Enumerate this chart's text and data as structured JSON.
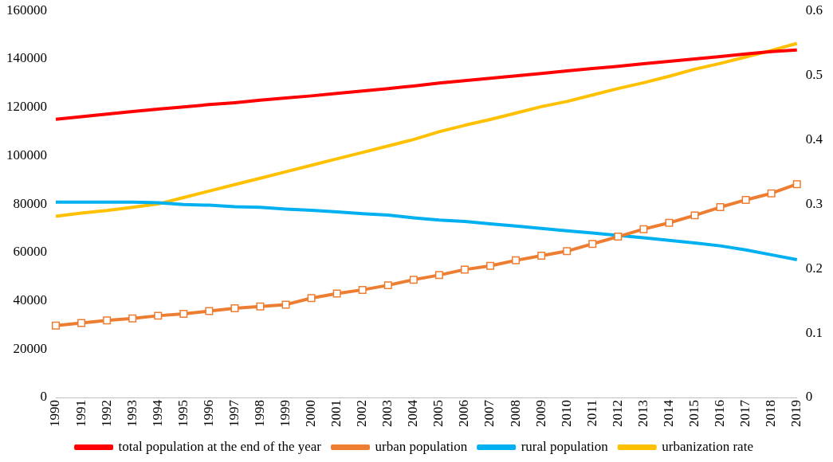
{
  "chart_data": {
    "type": "line",
    "categories": [
      "1990",
      "1991",
      "1992",
      "1993",
      "1994",
      "1995",
      "1996",
      "1997",
      "1998",
      "1999",
      "2000",
      "2001",
      "2002",
      "2003",
      "2004",
      "2005",
      "2006",
      "2007",
      "2008",
      "2009",
      "2010",
      "2011",
      "2012",
      "2013",
      "2014",
      "2015",
      "2016",
      "2017",
      "2018",
      "2019"
    ],
    "series": [
      {
        "name": "total population at the end of the year",
        "color": "#ff0000",
        "marker": "none",
        "values": [
          115000,
          116100,
          117200,
          118200,
          119200,
          120100,
          121100,
          121900,
          122900,
          123800,
          124700,
          125700,
          126700,
          127700,
          128800,
          130000,
          131000,
          132000,
          133000,
          134000,
          135000,
          136000,
          136900,
          138000,
          139000,
          140000,
          141000,
          142000,
          143000,
          143700
        ]
      },
      {
        "name": "urban population",
        "color": "#ed7d31",
        "marker": "square",
        "values": [
          29700,
          30800,
          31900,
          32700,
          33800,
          34600,
          35700,
          36900,
          37600,
          38400,
          41100,
          43000,
          44500,
          46400,
          48700,
          50600,
          52900,
          54400,
          56700,
          58600,
          60500,
          63500,
          66500,
          69600,
          72200,
          75300,
          78700,
          81700,
          84400,
          88200
        ]
      },
      {
        "name": "rural population",
        "color": "#00b0f0",
        "marker": "none",
        "values": [
          80800,
          80800,
          80800,
          80800,
          80500,
          79800,
          79500,
          78900,
          78600,
          77900,
          77400,
          76700,
          76000,
          75400,
          74300,
          73400,
          72800,
          71800,
          70900,
          69900,
          68900,
          68000,
          67000,
          66000,
          65000,
          63900,
          62700,
          61000,
          59000,
          57000
        ]
      },
      {
        "name": "urbanization rate",
        "color": "#ffc000",
        "marker": "none",
        "axis": "y2",
        "values": [
          0.281,
          0.286,
          0.29,
          0.295,
          0.3,
          0.31,
          0.32,
          0.33,
          0.34,
          0.35,
          0.36,
          0.37,
          0.38,
          0.39,
          0.4,
          0.412,
          0.422,
          0.431,
          0.441,
          0.451,
          0.459,
          0.469,
          0.479,
          0.488,
          0.498,
          0.509,
          0.518,
          0.528,
          0.538,
          0.549
        ]
      }
    ],
    "ylim": [
      0,
      160000
    ],
    "yticks": [
      0,
      20000,
      40000,
      60000,
      80000,
      100000,
      120000,
      140000,
      160000
    ],
    "y2lim": [
      0,
      0.6
    ],
    "y2ticks": [
      0,
      0.1,
      0.2,
      0.3,
      0.4,
      0.5,
      0.6
    ],
    "grid": false,
    "legend": "bottom",
    "line_style": "solid"
  }
}
